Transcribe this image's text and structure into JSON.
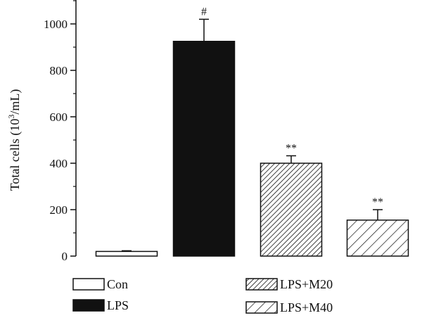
{
  "chart_data": {
    "type": "bar",
    "categories": [
      "Con",
      "LPS",
      "LPS+M20",
      "LPS+M40"
    ],
    "values": [
      20,
      925,
      400,
      155
    ],
    "errors": [
      3,
      95,
      32,
      45
    ],
    "annotations": [
      "",
      "#",
      "**",
      "**"
    ],
    "fills": [
      "white",
      "black",
      "hatch-dense",
      "hatch-sparse"
    ],
    "ylabel_main": "Total cells (10",
    "ylabel_sup": "3",
    "ylabel_tail": "/mL)",
    "ylim": [
      0,
      1100
    ],
    "yticks": [
      0,
      200,
      400,
      600,
      800,
      1000
    ],
    "grid": false,
    "legend_position": "bottom",
    "legend": [
      {
        "label": "Con",
        "fill": "white"
      },
      {
        "label": "LPS",
        "fill": "black"
      },
      {
        "label": "LPS+M20",
        "fill": "hatch-dense"
      },
      {
        "label": "LPS+M40",
        "fill": "hatch-sparse"
      }
    ]
  }
}
